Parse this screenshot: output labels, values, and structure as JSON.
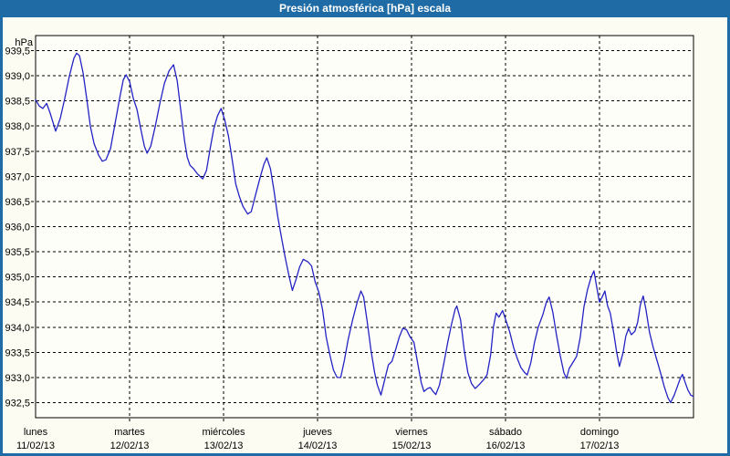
{
  "window": {
    "title": "Presión atmosférica [hPa] escala",
    "colors": {
      "frame": "#1F6BA6",
      "background": "#FCFCF2",
      "plot_background": "#FEFEF9",
      "grid": "#000000",
      "line": "#2323C4",
      "text": "#000000",
      "title_text": "#FFFFFF"
    }
  },
  "chart_data": {
    "type": "line",
    "title": "Presión atmosférica [hPa] escala",
    "ylabel": "hPa",
    "xlabel": "",
    "grid": true,
    "legend": "none",
    "xlim_days": [
      0,
      7
    ],
    "ylim": [
      932.2,
      939.8
    ],
    "y_ticks": [
      939.5,
      939.0,
      938.5,
      938.0,
      937.5,
      937.0,
      936.5,
      936.0,
      935.5,
      935.0,
      934.5,
      934.0,
      933.5,
      933.0,
      932.5
    ],
    "y_tick_labels": [
      "939,5",
      "939,0",
      "938,5",
      "938,0",
      "937,5",
      "937,0",
      "936,5",
      "936,0",
      "935,5",
      "935,0",
      "934,5",
      "934,0",
      "933,5",
      "933,0",
      "932,5"
    ],
    "x_axis": {
      "days": [
        {
          "name": "lunes",
          "date": "11/02/13"
        },
        {
          "name": "martes",
          "date": "12/02/13"
        },
        {
          "name": "miércoles",
          "date": "13/02/13"
        },
        {
          "name": "jueves",
          "date": "14/02/13"
        },
        {
          "name": "viernes",
          "date": "15/02/13"
        },
        {
          "name": "sábado",
          "date": "16/02/13"
        },
        {
          "name": "domingo",
          "date": "17/02/13"
        }
      ]
    },
    "series": [
      {
        "name": "Presión atmosférica",
        "units": "hPa",
        "x_unit": "days since 11/02/13 00:00",
        "points": [
          [
            0,
            938.52
          ],
          [
            0.039,
            938.4
          ],
          [
            0.078,
            938.35
          ],
          [
            0.117,
            938.45
          ],
          [
            0.156,
            938.25
          ],
          [
            0.214,
            937.9
          ],
          [
            0.262,
            938.15
          ],
          [
            0.311,
            938.55
          ],
          [
            0.36,
            939.0
          ],
          [
            0.408,
            939.35
          ],
          [
            0.437,
            939.45
          ],
          [
            0.467,
            939.4
          ],
          [
            0.506,
            939.05
          ],
          [
            0.544,
            938.55
          ],
          [
            0.583,
            938.0
          ],
          [
            0.622,
            937.65
          ],
          [
            0.671,
            937.42
          ],
          [
            0.71,
            937.3
          ],
          [
            0.749,
            937.33
          ],
          [
            0.797,
            937.55
          ],
          [
            0.846,
            938.05
          ],
          [
            0.894,
            938.55
          ],
          [
            0.933,
            938.92
          ],
          [
            0.963,
            939.02
          ],
          [
            1.001,
            938.88
          ],
          [
            1.04,
            938.55
          ],
          [
            1.079,
            938.33
          ],
          [
            1.118,
            937.95
          ],
          [
            1.157,
            937.6
          ],
          [
            1.186,
            937.46
          ],
          [
            1.225,
            937.6
          ],
          [
            1.274,
            938.0
          ],
          [
            1.322,
            938.45
          ],
          [
            1.371,
            938.85
          ],
          [
            1.42,
            939.1
          ],
          [
            1.468,
            939.22
          ],
          [
            1.507,
            938.9
          ],
          [
            1.546,
            938.3
          ],
          [
            1.585,
            937.7
          ],
          [
            1.614,
            937.38
          ],
          [
            1.643,
            937.22
          ],
          [
            1.682,
            937.15
          ],
          [
            1.721,
            937.05
          ],
          [
            1.779,
            936.95
          ],
          [
            1.818,
            937.12
          ],
          [
            1.857,
            937.55
          ],
          [
            1.896,
            937.95
          ],
          [
            1.935,
            938.2
          ],
          [
            1.974,
            938.35
          ],
          [
            2.013,
            938.12
          ],
          [
            2.052,
            937.8
          ],
          [
            2.09,
            937.35
          ],
          [
            2.129,
            936.85
          ],
          [
            2.168,
            936.6
          ],
          [
            2.207,
            936.4
          ],
          [
            2.256,
            936.25
          ],
          [
            2.295,
            936.3
          ],
          [
            2.343,
            936.65
          ],
          [
            2.392,
            937.0
          ],
          [
            2.431,
            937.25
          ],
          [
            2.46,
            937.37
          ],
          [
            2.499,
            937.15
          ],
          [
            2.538,
            936.7
          ],
          [
            2.577,
            936.2
          ],
          [
            2.615,
            935.8
          ],
          [
            2.654,
            935.4
          ],
          [
            2.693,
            935.05
          ],
          [
            2.732,
            934.73
          ],
          [
            2.771,
            934.95
          ],
          [
            2.81,
            935.2
          ],
          [
            2.849,
            935.35
          ],
          [
            2.897,
            935.3
          ],
          [
            2.936,
            935.22
          ],
          [
            2.975,
            934.9
          ],
          [
            3.014,
            934.7
          ],
          [
            3.053,
            934.35
          ],
          [
            3.092,
            933.8
          ],
          [
            3.131,
            933.45
          ],
          [
            3.169,
            933.15
          ],
          [
            3.208,
            933.0
          ],
          [
            3.247,
            933.0
          ],
          [
            3.286,
            933.35
          ],
          [
            3.325,
            933.75
          ],
          [
            3.374,
            934.15
          ],
          [
            3.422,
            934.5
          ],
          [
            3.461,
            934.72
          ],
          [
            3.49,
            934.6
          ],
          [
            3.529,
            934.1
          ],
          [
            3.568,
            933.55
          ],
          [
            3.607,
            933.1
          ],
          [
            3.636,
            932.85
          ],
          [
            3.675,
            932.65
          ],
          [
            3.714,
            932.95
          ],
          [
            3.753,
            933.25
          ],
          [
            3.791,
            933.32
          ],
          [
            3.83,
            933.55
          ],
          [
            3.869,
            933.8
          ],
          [
            3.908,
            933.98
          ],
          [
            3.947,
            933.95
          ],
          [
            3.986,
            933.8
          ],
          [
            4.025,
            933.7
          ],
          [
            4.064,
            933.3
          ],
          [
            4.103,
            932.9
          ],
          [
            4.132,
            932.72
          ],
          [
            4.171,
            932.78
          ],
          [
            4.2,
            932.8
          ],
          [
            4.229,
            932.72
          ],
          [
            4.258,
            932.66
          ],
          [
            4.297,
            932.85
          ],
          [
            4.346,
            933.3
          ],
          [
            4.385,
            933.7
          ],
          [
            4.424,
            934.05
          ],
          [
            4.463,
            934.35
          ],
          [
            4.482,
            934.42
          ],
          [
            4.521,
            934.15
          ],
          [
            4.56,
            933.55
          ],
          [
            4.599,
            933.1
          ],
          [
            4.638,
            932.88
          ],
          [
            4.677,
            932.78
          ],
          [
            4.716,
            932.85
          ],
          [
            4.764,
            932.95
          ],
          [
            4.803,
            933.05
          ],
          [
            4.842,
            933.45
          ],
          [
            4.871,
            934.0
          ],
          [
            4.9,
            934.28
          ],
          [
            4.93,
            934.2
          ],
          [
            4.969,
            934.33
          ],
          [
            5.007,
            934.12
          ],
          [
            5.046,
            933.9
          ],
          [
            5.085,
            933.6
          ],
          [
            5.124,
            933.38
          ],
          [
            5.163,
            933.2
          ],
          [
            5.202,
            933.1
          ],
          [
            5.231,
            933.05
          ],
          [
            5.27,
            933.3
          ],
          [
            5.309,
            933.7
          ],
          [
            5.348,
            934.0
          ],
          [
            5.397,
            934.25
          ],
          [
            5.435,
            934.5
          ],
          [
            5.464,
            934.6
          ],
          [
            5.503,
            934.3
          ],
          [
            5.542,
            933.85
          ],
          [
            5.581,
            933.45
          ],
          [
            5.62,
            933.1
          ],
          [
            5.649,
            932.98
          ],
          [
            5.678,
            933.18
          ],
          [
            5.717,
            933.3
          ],
          [
            5.756,
            933.42
          ],
          [
            5.795,
            933.8
          ],
          [
            5.834,
            934.4
          ],
          [
            5.873,
            934.75
          ],
          [
            5.912,
            935.0
          ],
          [
            5.941,
            935.12
          ],
          [
            5.97,
            934.8
          ],
          [
            5.999,
            934.5
          ],
          [
            6.028,
            934.6
          ],
          [
            6.057,
            934.72
          ],
          [
            6.086,
            934.42
          ],
          [
            6.115,
            934.28
          ],
          [
            6.154,
            933.85
          ],
          [
            6.183,
            933.5
          ],
          [
            6.212,
            933.22
          ],
          [
            6.251,
            933.5
          ],
          [
            6.28,
            933.82
          ],
          [
            6.309,
            933.97
          ],
          [
            6.339,
            933.85
          ],
          [
            6.377,
            933.92
          ],
          [
            6.406,
            934.1
          ],
          [
            6.435,
            934.45
          ],
          [
            6.465,
            934.62
          ],
          [
            6.494,
            934.35
          ],
          [
            6.532,
            933.9
          ],
          [
            6.571,
            933.6
          ],
          [
            6.61,
            933.35
          ],
          [
            6.649,
            933.1
          ],
          [
            6.688,
            932.82
          ],
          [
            6.727,
            932.6
          ],
          [
            6.756,
            932.5
          ],
          [
            6.795,
            932.65
          ],
          [
            6.834,
            932.85
          ],
          [
            6.863,
            933.0
          ],
          [
            6.883,
            933.06
          ],
          [
            6.912,
            932.9
          ],
          [
            6.941,
            932.75
          ],
          [
            6.97,
            932.65
          ],
          [
            6.999,
            932.62
          ]
        ]
      }
    ]
  }
}
